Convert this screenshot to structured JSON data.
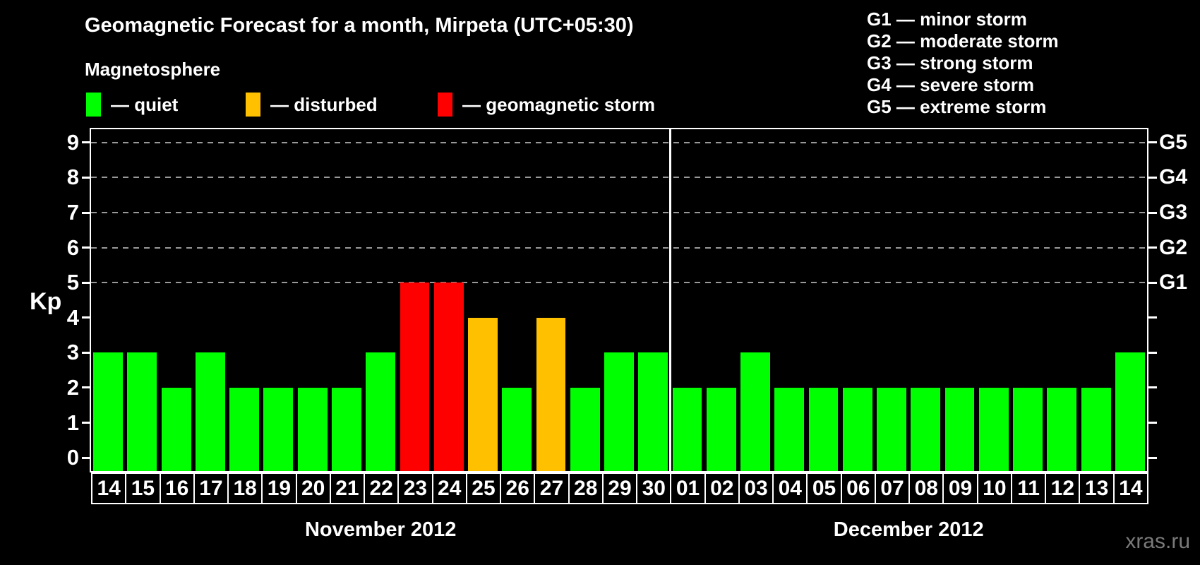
{
  "title": "Geomagnetic Forecast for a month, Mirpeta (UTC+05:30)",
  "legend": {
    "heading": "Magnetosphere",
    "items": [
      {
        "key": "quiet",
        "label": "— quiet",
        "color": "#00ff00"
      },
      {
        "key": "disturbed",
        "label": "— disturbed",
        "color": "#ffc000"
      },
      {
        "key": "storm",
        "label": "— geomagnetic storm",
        "color": "#ff0000"
      }
    ]
  },
  "g_scale_legend": [
    {
      "label": "G1 — minor storm"
    },
    {
      "label": "G2 — moderate storm"
    },
    {
      "label": "G3 — strong storm"
    },
    {
      "label": "G4 — severe storm"
    },
    {
      "label": "G5 — extreme storm"
    }
  ],
  "watermark": "xras.ru",
  "chart_data": {
    "type": "bar",
    "title": "Geomagnetic Forecast for a month, Mirpeta (UTC+05:30)",
    "ylabel": "Kp",
    "ylim": [
      -0.38,
      9.38
    ],
    "yticks": [
      0,
      1,
      2,
      3,
      4,
      5,
      6,
      7,
      8,
      9
    ],
    "gridlines_at": [
      5,
      6,
      7,
      8,
      9
    ],
    "grid": "dashed horizontal at G-storm levels only",
    "right_axis": [
      {
        "label": "G1",
        "kp": 5
      },
      {
        "label": "G2",
        "kp": 6
      },
      {
        "label": "G3",
        "kp": 7
      },
      {
        "label": "G4",
        "kp": 8
      },
      {
        "label": "G5",
        "kp": 9
      }
    ],
    "categories": [
      "14",
      "15",
      "16",
      "17",
      "18",
      "19",
      "20",
      "21",
      "22",
      "23",
      "24",
      "25",
      "26",
      "27",
      "28",
      "29",
      "30",
      "01",
      "02",
      "03",
      "04",
      "05",
      "06",
      "07",
      "08",
      "09",
      "10",
      "11",
      "12",
      "13",
      "14"
    ],
    "values": [
      3,
      3,
      2,
      3,
      2,
      2,
      2,
      2,
      3,
      5,
      5,
      4,
      2,
      4,
      2,
      3,
      3,
      2,
      2,
      3,
      2,
      2,
      2,
      2,
      2,
      2,
      2,
      2,
      2,
      2,
      3
    ],
    "months": [
      {
        "label": "November 2012",
        "count": 17
      },
      {
        "label": "December 2012",
        "count": 14
      }
    ],
    "status_rule": {
      "storm_min_kp": 5,
      "disturbed_min_kp": 4
    },
    "status_colors": {
      "quiet": "#00ff00",
      "disturbed": "#ffc000",
      "storm": "#ff0000"
    }
  }
}
